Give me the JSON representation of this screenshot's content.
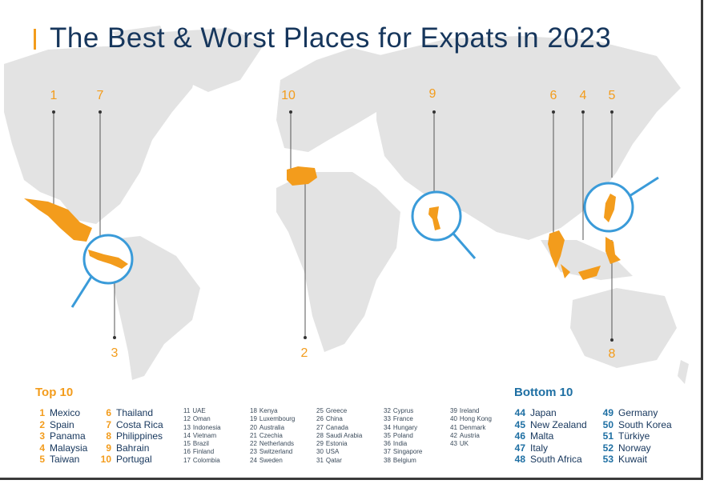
{
  "title": "The Best & Worst Places for Expats in 2023",
  "colors": {
    "accent": "#f39c1c",
    "callout": "#3a9bd9",
    "land": "#e3e3e3",
    "title": "#16365c",
    "bottom_heading": "#1e6fa3"
  },
  "map_labels": [
    "1",
    "7",
    "10",
    "9",
    "6",
    "4",
    "5",
    "3",
    "2",
    "8"
  ],
  "top10": {
    "heading": "Top 10",
    "col1": [
      {
        "rank": "1",
        "name": "Mexico"
      },
      {
        "rank": "2",
        "name": "Spain"
      },
      {
        "rank": "3",
        "name": "Panama"
      },
      {
        "rank": "4",
        "name": "Malaysia"
      },
      {
        "rank": "5",
        "name": "Taiwan"
      }
    ],
    "col2": [
      {
        "rank": "6",
        "name": "Thailand"
      },
      {
        "rank": "7",
        "name": "Costa Rica"
      },
      {
        "rank": "8",
        "name": "Philippines"
      },
      {
        "rank": "9",
        "name": "Bahrain"
      },
      {
        "rank": "10",
        "name": "Portugal"
      }
    ]
  },
  "middle": [
    [
      {
        "rank": "11",
        "name": "UAE"
      },
      {
        "rank": "12",
        "name": "Oman"
      },
      {
        "rank": "13",
        "name": "Indonesia"
      },
      {
        "rank": "14",
        "name": "Vietnam"
      },
      {
        "rank": "15",
        "name": "Brazil"
      },
      {
        "rank": "16",
        "name": "Finland"
      },
      {
        "rank": "17",
        "name": "Colombia"
      }
    ],
    [
      {
        "rank": "18",
        "name": "Kenya"
      },
      {
        "rank": "19",
        "name": "Luxembourg"
      },
      {
        "rank": "20",
        "name": "Australia"
      },
      {
        "rank": "21",
        "name": "Czechia"
      },
      {
        "rank": "22",
        "name": "Netherlands"
      },
      {
        "rank": "23",
        "name": "Switzerland"
      },
      {
        "rank": "24",
        "name": "Sweden"
      }
    ],
    [
      {
        "rank": "25",
        "name": "Greece"
      },
      {
        "rank": "26",
        "name": "China"
      },
      {
        "rank": "27",
        "name": "Canada"
      },
      {
        "rank": "28",
        "name": "Saudi Arabia"
      },
      {
        "rank": "29",
        "name": "Estonia"
      },
      {
        "rank": "30",
        "name": "USA"
      },
      {
        "rank": "31",
        "name": "Qatar"
      }
    ],
    [
      {
        "rank": "32",
        "name": "Cyprus"
      },
      {
        "rank": "33",
        "name": "France"
      },
      {
        "rank": "34",
        "name": "Hungary"
      },
      {
        "rank": "35",
        "name": "Poland"
      },
      {
        "rank": "36",
        "name": "India"
      },
      {
        "rank": "37",
        "name": "Singapore"
      },
      {
        "rank": "38",
        "name": "Belgium"
      }
    ],
    [
      {
        "rank": "39",
        "name": "Ireland"
      },
      {
        "rank": "40",
        "name": "Hong Kong"
      },
      {
        "rank": "41",
        "name": "Denmark"
      },
      {
        "rank": "42",
        "name": "Austria"
      },
      {
        "rank": "43",
        "name": "UK"
      }
    ]
  ],
  "bottom10": {
    "heading": "Bottom 10",
    "col1": [
      {
        "rank": "44",
        "name": "Japan"
      },
      {
        "rank": "45",
        "name": "New Zealand"
      },
      {
        "rank": "46",
        "name": "Malta"
      },
      {
        "rank": "47",
        "name": "Italy"
      },
      {
        "rank": "48",
        "name": "South Africa"
      }
    ],
    "col2": [
      {
        "rank": "49",
        "name": "Germany"
      },
      {
        "rank": "50",
        "name": "South Korea"
      },
      {
        "rank": "51",
        "name": "Türkiye"
      },
      {
        "rank": "52",
        "name": "Norway"
      },
      {
        "rank": "53",
        "name": "Kuwait"
      }
    ]
  }
}
